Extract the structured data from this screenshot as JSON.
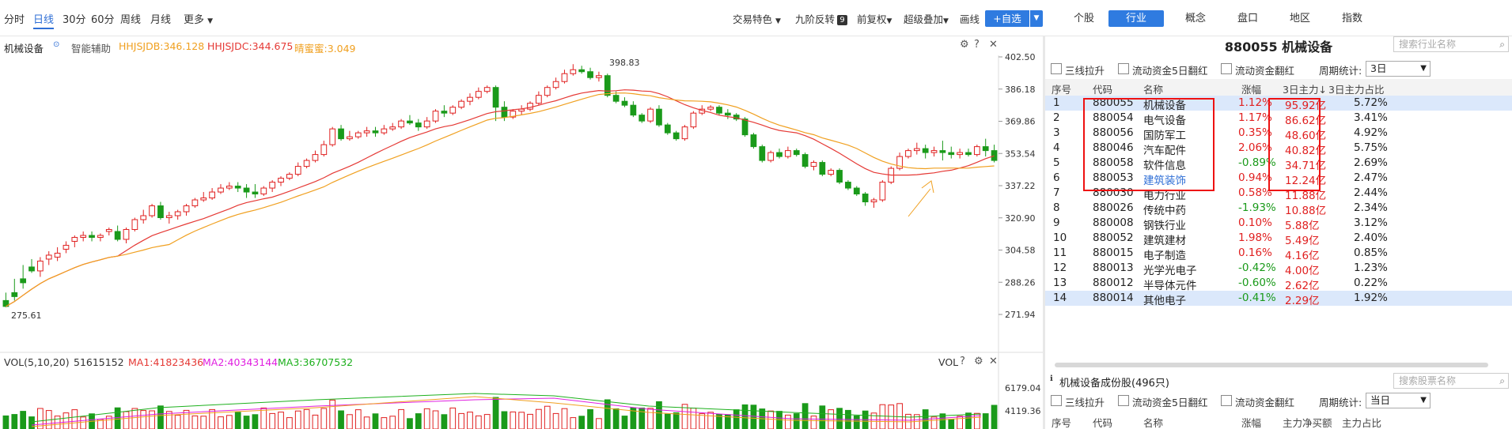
{
  "periods": [
    "分时",
    "日线",
    "30分",
    "60分",
    "周线",
    "月线",
    "更多"
  ],
  "toolbar": {
    "trade_feature": "交易特色",
    "nine_reversal": "九阶反转",
    "nine_badge": "9",
    "restore": "前复权",
    "overlay": "超级叠加",
    "draw": "画线",
    "add_fav": "+自选"
  },
  "right_tabs": [
    "个股",
    "行业",
    "概念",
    "盘口",
    "地区",
    "指数"
  ],
  "chart": {
    "name": "机械设备",
    "assist": "智能辅助",
    "ind1": "HHJSJDB:346.128",
    "ind2": "HHJSJDC:344.675",
    "ind3": "晴蜜蜜:3.049",
    "high_label": "398.83",
    "low_label": "275.61",
    "yticks": [
      "402.50",
      "386.18",
      "369.86",
      "353.54",
      "337.22",
      "320.90",
      "304.58",
      "288.26",
      "271.94"
    ],
    "vol_label": "VOL(5,10,20)",
    "vol_value": "51615152",
    "ma1": "MA1:41823436",
    "ma2": "MA2:40343144",
    "ma3": "MA3:36707532",
    "vol_tag": "VOL",
    "vol_yticks": [
      "6179.04",
      "4119.36"
    ],
    "colors": {
      "up": "#e02020",
      "down": "#1a9a1a",
      "ma_red": "#e53935",
      "ma_orange": "#f0a020",
      "ma_magenta": "#e020e0",
      "ma_green": "#1db01d"
    }
  },
  "chart_data": {
    "type": "candlestick",
    "price_range": [
      271.94,
      402.5
    ],
    "ohlc": [
      [
        279,
        283,
        276,
        275.6
      ],
      [
        283,
        290,
        281,
        279
      ],
      [
        290,
        297,
        288,
        285
      ],
      [
        296,
        300,
        294,
        293
      ],
      [
        294,
        301,
        299,
        291
      ],
      [
        300,
        304,
        302,
        297
      ],
      [
        301,
        306,
        303,
        299
      ],
      [
        305,
        309,
        307,
        303
      ],
      [
        309,
        312,
        311,
        306
      ],
      [
        311,
        314,
        312,
        309
      ],
      [
        312,
        314,
        311,
        309
      ],
      [
        311,
        313,
        312,
        309
      ],
      [
        314,
        316,
        315,
        312
      ],
      [
        314,
        317,
        310,
        309
      ],
      [
        310,
        316,
        315,
        308
      ],
      [
        315,
        321,
        320,
        314
      ],
      [
        320,
        325,
        322,
        318
      ],
      [
        322,
        328,
        327,
        321
      ],
      [
        327,
        329,
        321,
        320
      ],
      [
        321,
        324,
        322,
        318
      ],
      [
        322,
        325,
        324,
        320
      ],
      [
        324,
        328,
        327,
        322
      ],
      [
        327,
        331,
        330,
        326
      ],
      [
        330,
        334,
        331,
        329
      ],
      [
        331,
        336,
        334,
        330
      ],
      [
        334,
        338,
        336,
        333
      ],
      [
        336,
        339,
        337,
        335
      ],
      [
        337,
        339,
        336,
        334
      ],
      [
        336,
        338,
        334,
        331
      ],
      [
        334,
        338,
        333,
        331
      ],
      [
        333,
        337,
        336,
        332
      ],
      [
        336,
        340,
        339,
        334
      ],
      [
        339,
        342,
        341,
        337
      ],
      [
        341,
        344,
        343,
        340
      ],
      [
        343,
        349,
        347,
        342
      ],
      [
        347,
        351,
        350,
        346
      ],
      [
        350,
        355,
        353,
        349
      ],
      [
        353,
        360,
        358,
        352
      ],
      [
        358,
        367,
        366,
        357
      ],
      [
        366,
        368,
        361,
        360
      ],
      [
        361,
        365,
        362,
        360
      ],
      [
        362,
        365,
        364,
        361
      ],
      [
        364,
        367,
        365,
        362
      ],
      [
        365,
        367,
        364,
        362
      ],
      [
        364,
        368,
        366,
        363
      ],
      [
        366,
        369,
        367,
        365
      ],
      [
        367,
        371,
        370,
        366
      ],
      [
        370,
        373,
        369,
        368
      ],
      [
        369,
        371,
        367,
        365
      ],
      [
        367,
        372,
        370,
        366
      ],
      [
        370,
        376,
        375,
        369
      ],
      [
        375,
        378,
        374,
        372
      ],
      [
        374,
        378,
        377,
        373
      ],
      [
        377,
        381,
        380,
        376
      ],
      [
        380,
        384,
        382,
        378
      ],
      [
        382,
        387,
        385,
        381
      ],
      [
        385,
        388,
        387,
        384
      ],
      [
        387,
        388,
        377,
        370
      ],
      [
        377,
        380,
        372,
        370
      ],
      [
        372,
        376,
        375,
        371
      ],
      [
        375,
        378,
        376,
        373
      ],
      [
        376,
        380,
        379,
        375
      ],
      [
        379,
        385,
        383,
        378
      ],
      [
        383,
        388,
        387,
        382
      ],
      [
        387,
        392,
        390,
        386
      ],
      [
        390,
        396,
        394,
        389
      ],
      [
        394,
        398.8,
        396,
        393
      ],
      [
        396,
        398,
        395,
        394
      ],
      [
        395,
        397,
        392,
        391
      ],
      [
        392,
        395,
        393,
        390
      ],
      [
        393,
        394,
        383,
        382
      ],
      [
        383,
        385,
        380,
        379
      ],
      [
        380,
        382,
        378,
        377
      ],
      [
        378,
        380,
        373,
        372
      ],
      [
        373,
        374,
        370,
        369
      ],
      [
        370,
        377,
        376,
        369
      ],
      [
        376,
        378,
        368,
        367
      ],
      [
        368,
        369,
        364,
        363
      ],
      [
        364,
        365,
        361,
        360
      ],
      [
        361,
        368,
        367,
        360
      ],
      [
        367,
        375,
        374,
        366
      ],
      [
        374,
        378,
        376,
        373
      ],
      [
        376,
        378,
        377,
        375
      ],
      [
        377,
        378,
        374,
        373
      ],
      [
        374,
        376,
        373,
        371
      ],
      [
        373,
        374,
        371,
        370
      ],
      [
        371,
        372,
        363,
        362
      ],
      [
        363,
        364,
        357,
        356
      ],
      [
        357,
        358,
        350,
        349
      ],
      [
        350,
        355,
        354,
        349
      ],
      [
        354,
        356,
        352,
        351
      ],
      [
        352,
        357,
        355,
        351
      ],
      [
        355,
        356,
        353,
        352
      ],
      [
        353,
        354,
        347,
        346
      ],
      [
        347,
        350,
        349,
        345
      ],
      [
        349,
        350,
        343,
        342
      ],
      [
        343,
        346,
        345,
        342
      ],
      [
        345,
        346,
        339,
        338
      ],
      [
        339,
        340,
        336,
        335
      ],
      [
        336,
        337,
        333,
        332
      ],
      [
        333,
        334,
        329,
        327
      ],
      [
        329,
        331,
        330,
        326
      ],
      [
        330,
        340,
        339,
        329
      ],
      [
        339,
        347,
        346,
        338
      ],
      [
        346,
        354,
        352,
        345
      ],
      [
        352,
        356,
        355,
        351
      ],
      [
        355,
        359,
        356,
        353
      ],
      [
        356,
        358,
        354,
        351
      ],
      [
        354,
        357,
        355,
        352
      ],
      [
        355,
        360,
        354,
        350
      ],
      [
        354,
        357,
        353,
        351
      ],
      [
        353,
        356,
        354,
        351
      ],
      [
        354,
        356,
        353,
        352
      ],
      [
        353,
        358,
        357,
        352
      ],
      [
        357,
        361,
        355,
        352
      ],
      [
        355,
        358,
        350,
        349
      ]
    ],
    "volume_range": [
      0,
      6179.04
    ]
  },
  "right": {
    "title": "880055 机械设备",
    "search_industry": "搜索行业名称",
    "filters": [
      "三线拉升",
      "流动资金5日翻红",
      "流动资金翻红"
    ],
    "period_label": "周期统计:",
    "period_value": "3日",
    "headers": [
      "序号",
      "代码",
      "名称",
      "涨幅",
      "3日主力↓",
      "3日主力占比"
    ],
    "rows": [
      [
        "1",
        "880055",
        "机械设备",
        "1.12%",
        "95.92亿",
        "5.72%"
      ],
      [
        "2",
        "880054",
        "电气设备",
        "1.17%",
        "86.62亿",
        "3.41%"
      ],
      [
        "3",
        "880056",
        "国防军工",
        "0.35%",
        "48.60亿",
        "4.92%"
      ],
      [
        "4",
        "880046",
        "汽车配件",
        "2.06%",
        "40.82亿",
        "5.75%"
      ],
      [
        "5",
        "880058",
        "软件信息",
        "-0.89%",
        "34.71亿",
        "2.69%"
      ],
      [
        "6",
        "880053",
        "建筑装饰",
        "0.94%",
        "12.24亿",
        "2.47%"
      ],
      [
        "7",
        "880030",
        "电力行业",
        "0.58%",
        "11.88亿",
        "2.44%"
      ],
      [
        "8",
        "880026",
        "传统中药",
        "-1.93%",
        "10.88亿",
        "2.34%"
      ],
      [
        "9",
        "880008",
        "钢铁行业",
        "0.10%",
        "5.88亿",
        "3.12%"
      ],
      [
        "10",
        "880052",
        "建筑建材",
        "1.98%",
        "5.49亿",
        "2.40%"
      ],
      [
        "11",
        "880015",
        "电子制造",
        "0.16%",
        "4.16亿",
        "0.85%"
      ],
      [
        "12",
        "880013",
        "光学光电子",
        "-0.42%",
        "4.00亿",
        "1.23%"
      ],
      [
        "13",
        "880012",
        "半导体元件",
        "-0.60%",
        "2.62亿",
        "0.22%"
      ],
      [
        "14",
        "880014",
        "其他电子",
        "-0.41%",
        "2.29亿",
        "1.92%"
      ]
    ],
    "section_title": "机械设备成份股(496只)",
    "search_stock": "搜索股票名称",
    "filters2": [
      "三线拉升",
      "流动资金5日翻红",
      "流动资金翻红"
    ],
    "period_label2": "周期统计:",
    "period_value2": "当日",
    "headers2": [
      "序号",
      "代码",
      "名称",
      "涨幅",
      "主力净买额",
      "主力占比"
    ]
  }
}
